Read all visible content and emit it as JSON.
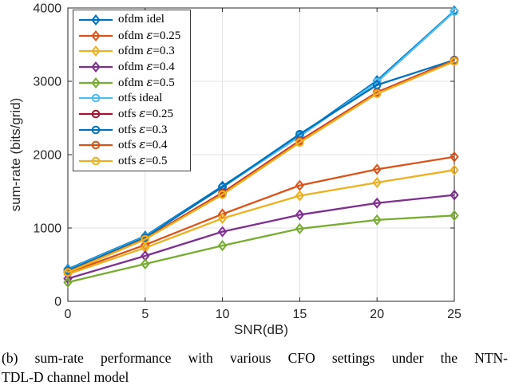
{
  "figure": {
    "caption_line1": "(b) sum-rate performance with various CFO settings under the NTN-",
    "caption_line2": "TDL-D channel model"
  },
  "chart_data": {
    "type": "line",
    "title": "",
    "xlabel": "SNR(dB)",
    "ylabel": "sum-rate (bits/grid)",
    "x": [
      0,
      5,
      10,
      15,
      20,
      25
    ],
    "xlim": [
      0,
      25
    ],
    "ylim": [
      0,
      4000
    ],
    "xticks": [
      0,
      5,
      10,
      15,
      20,
      25
    ],
    "yticks": [
      0,
      1000,
      2000,
      3000,
      4000
    ],
    "grid": true,
    "legend_position": "top-left",
    "axis_color": "#262626",
    "grid_color": "#e3e3e3",
    "series": [
      {
        "name": "ofdm idel",
        "color": "#0072BD",
        "marker": "diamond",
        "values": [
          440,
          890,
          1570,
          2260,
          3010,
          3960
        ]
      },
      {
        "name": "ofdm ε=0.25",
        "color": "#D95319",
        "marker": "diamond",
        "values": [
          390,
          770,
          1190,
          1580,
          1800,
          1970
        ]
      },
      {
        "name": "ofdm ε=0.3",
        "color": "#EDB120",
        "marker": "diamond",
        "values": [
          370,
          730,
          1130,
          1440,
          1620,
          1790
        ]
      },
      {
        "name": "ofdm ε=0.4",
        "color": "#7E2F8E",
        "marker": "diamond",
        "values": [
          310,
          620,
          950,
          1180,
          1340,
          1450
        ]
      },
      {
        "name": "ofdm ε=0.5",
        "color": "#77AC30",
        "marker": "diamond",
        "values": [
          260,
          510,
          760,
          990,
          1110,
          1170
        ]
      },
      {
        "name": "otfs ideal",
        "color": "#4DBEEE",
        "marker": "circle",
        "values": [
          430,
          880,
          1555,
          2250,
          2990,
          3950
        ]
      },
      {
        "name": "otfs ε=0.25",
        "color": "#A2142F",
        "marker": "circle",
        "values": [
          405,
          855,
          1480,
          2190,
          2850,
          3290
        ]
      },
      {
        "name": "otfs ε=0.3",
        "color": "#0072BD",
        "marker": "circle",
        "values": [
          420,
          870,
          1560,
          2280,
          2950,
          3290
        ]
      },
      {
        "name": "otfs ε=0.4",
        "color": "#D95319",
        "marker": "circle",
        "values": [
          400,
          850,
          1470,
          2180,
          2845,
          3285
        ]
      },
      {
        "name": "otfs ε=0.5",
        "color": "#EDB120",
        "marker": "circle",
        "values": [
          395,
          845,
          1455,
          2165,
          2830,
          3270
        ]
      }
    ]
  }
}
